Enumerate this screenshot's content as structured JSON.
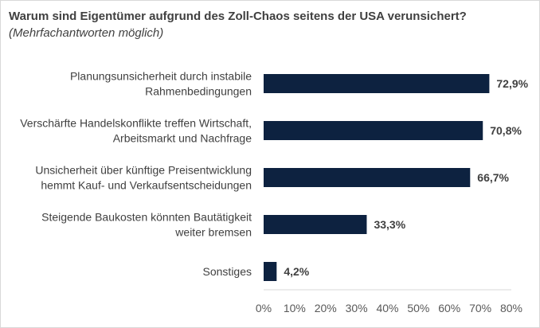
{
  "chart_data": {
    "type": "bar",
    "orientation": "horizontal",
    "title": "Warum sind Eigentümer aufgrund des Zoll-Chaos seitens der USA verunsichert?",
    "subtitle": "(Mehrfachantworten möglich)",
    "categories": [
      [
        "Planungsunsicherheit durch instabile",
        "Rahmenbedingungen"
      ],
      [
        "Verschärfte Handelskonflikte treffen Wirtschaft,",
        "Arbeitsmarkt und Nachfrage"
      ],
      [
        "Unsicherheit über künftige Preisentwicklung",
        "hemmt Kauf- und Verkaufsentscheidungen"
      ],
      [
        "Steigende Baukosten könnten Bautätigkeit",
        "weiter bremsen"
      ],
      [
        "Sonstiges"
      ]
    ],
    "values": [
      72.9,
      70.8,
      66.7,
      33.3,
      4.2
    ],
    "value_labels": [
      "72,9%",
      "70,8%",
      "66,7%",
      "33,3%",
      "4,2%"
    ],
    "xlim": [
      0,
      80
    ],
    "xticks": [
      "0%",
      "10%",
      "20%",
      "30%",
      "40%",
      "50%",
      "60%",
      "70%",
      "80%"
    ],
    "grid": false,
    "bar_color": "#0d2240"
  }
}
